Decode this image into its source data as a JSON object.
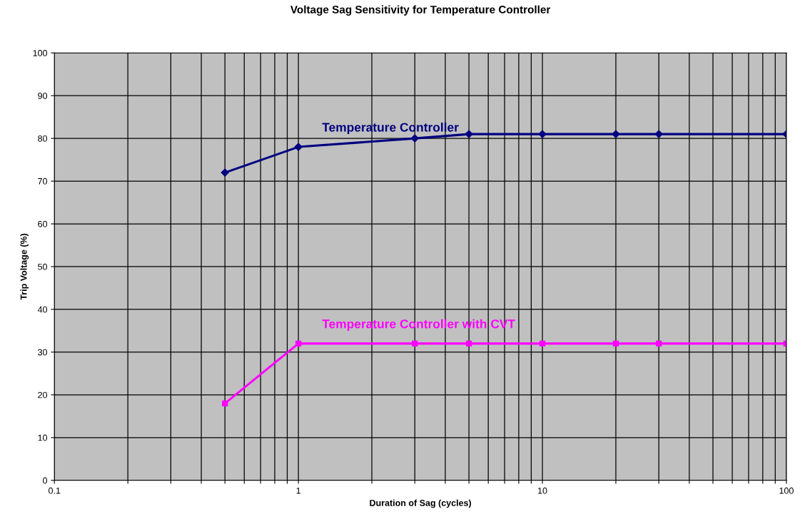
{
  "chart_data": {
    "type": "line",
    "title": "Voltage Sag Sensitivity for Temperature Controller",
    "xlabel": "Duration of Sag (cycles)",
    "ylabel": "Trip Voltage (%)",
    "log": "x",
    "xlim": [
      0.1,
      100
    ],
    "ylim": [
      0,
      100
    ],
    "xticks": [
      0.1,
      {
        "value": 0.2,
        "label": null
      },
      {
        "value": 0.3,
        "label": null
      },
      {
        "value": 0.4,
        "label": null
      },
      {
        "value": 0.5,
        "label": null
      },
      {
        "value": 0.6,
        "label": null
      },
      {
        "value": 0.7,
        "label": null
      },
      {
        "value": 0.8,
        "label": null
      },
      {
        "value": 0.9,
        "label": null
      },
      1,
      {
        "value": 2,
        "label": null
      },
      {
        "value": 3,
        "label": null
      },
      {
        "value": 4,
        "label": null
      },
      {
        "value": 5,
        "label": null
      },
      {
        "value": 6,
        "label": null
      },
      {
        "value": 7,
        "label": null
      },
      {
        "value": 8,
        "label": null
      },
      {
        "value": 9,
        "label": null
      },
      10,
      {
        "value": 20,
        "label": null
      },
      {
        "value": 30,
        "label": null
      },
      {
        "value": 40,
        "label": null
      },
      {
        "value": 50,
        "label": null
      },
      {
        "value": 60,
        "label": null
      },
      {
        "value": 70,
        "label": null
      },
      {
        "value": 80,
        "label": null
      },
      {
        "value": 90,
        "label": null
      },
      100
    ],
    "yticks": [
      0,
      10,
      20,
      30,
      40,
      50,
      60,
      70,
      80,
      90,
      100
    ],
    "grid": true,
    "legend": false,
    "x": [
      0.5,
      1,
      3,
      5,
      10,
      20,
      30,
      100
    ],
    "series": [
      {
        "name": "Temperature Controller",
        "color": "#000080",
        "marker": "diamond",
        "values": [
          72,
          78,
          80,
          81,
          81,
          81,
          81,
          81
        ]
      },
      {
        "name": "Temperature Controller with CVT",
        "color": "#ff00ff",
        "marker": "square",
        "values": [
          18,
          32,
          32,
          32,
          32,
          32,
          32,
          32
        ]
      }
    ]
  }
}
